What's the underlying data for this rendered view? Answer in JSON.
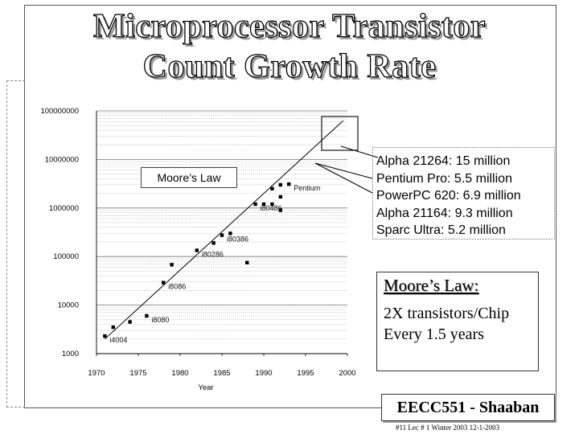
{
  "slide": {
    "title_line1": "Microprocessor Transistor",
    "title_line2": "Count Growth Rate",
    "moore_box": {
      "heading": "Moore’s Law:",
      "line1": "2X transistors/Chip",
      "line2": "Every 1.5 years"
    },
    "callout": [
      "Alpha 21264: 15 million",
      "Pentium Pro: 5.5 million",
      "PowerPC 620: 6.9 million",
      "Alpha 21164: 9.3 million",
      "Sparc Ultra: 5.2 million"
    ],
    "footer": "EECC551 - Shaaban",
    "footer_note": "#11   Lec # 1   Winter 2003   12-1-2003"
  },
  "chart_data": {
    "type": "scatter",
    "title": "",
    "xlabel": "Year",
    "ylabel": "",
    "xlim": [
      1970,
      2000
    ],
    "ylim": [
      1000,
      100000000
    ],
    "y_scale": "log",
    "x_ticks": [
      "1970",
      "1975",
      "1980",
      "1985",
      "1990",
      "1995",
      "2000"
    ],
    "y_ticks": [
      "1000",
      "10000",
      "100000",
      "1000000",
      "10000000",
      "100000000"
    ],
    "trend_label": "Moore’s Law",
    "trend_line": [
      [
        1971,
        2000
      ],
      [
        1999.5,
        63000000
      ]
    ],
    "points": [
      {
        "x": 1971,
        "y": 2300,
        "label": "i4004"
      },
      {
        "x": 1972,
        "y": 3500,
        "label": ""
      },
      {
        "x": 1974,
        "y": 4500,
        "label": ""
      },
      {
        "x": 1976,
        "y": 6000,
        "label": "i8080"
      },
      {
        "x": 1978,
        "y": 29000,
        "label": "i8086"
      },
      {
        "x": 1979,
        "y": 68000,
        "label": ""
      },
      {
        "x": 1982,
        "y": 134000,
        "label": "i80286"
      },
      {
        "x": 1984,
        "y": 190000,
        "label": ""
      },
      {
        "x": 1985,
        "y": 275000,
        "label": "i80386"
      },
      {
        "x": 1986,
        "y": 300000,
        "label": ""
      },
      {
        "x": 1988,
        "y": 75000,
        "label": ""
      },
      {
        "x": 1989,
        "y": 1200000,
        "label": "i80486"
      },
      {
        "x": 1990,
        "y": 1200000,
        "label": ""
      },
      {
        "x": 1991,
        "y": 1200000,
        "label": ""
      },
      {
        "x": 1991,
        "y": 2500000,
        "label": ""
      },
      {
        "x": 1992,
        "y": 900000,
        "label": ""
      },
      {
        "x": 1992,
        "y": 1700000,
        "label": ""
      },
      {
        "x": 1992,
        "y": 3000000,
        "label": ""
      },
      {
        "x": 1993,
        "y": 3100000,
        "label": "Pentium"
      }
    ]
  }
}
